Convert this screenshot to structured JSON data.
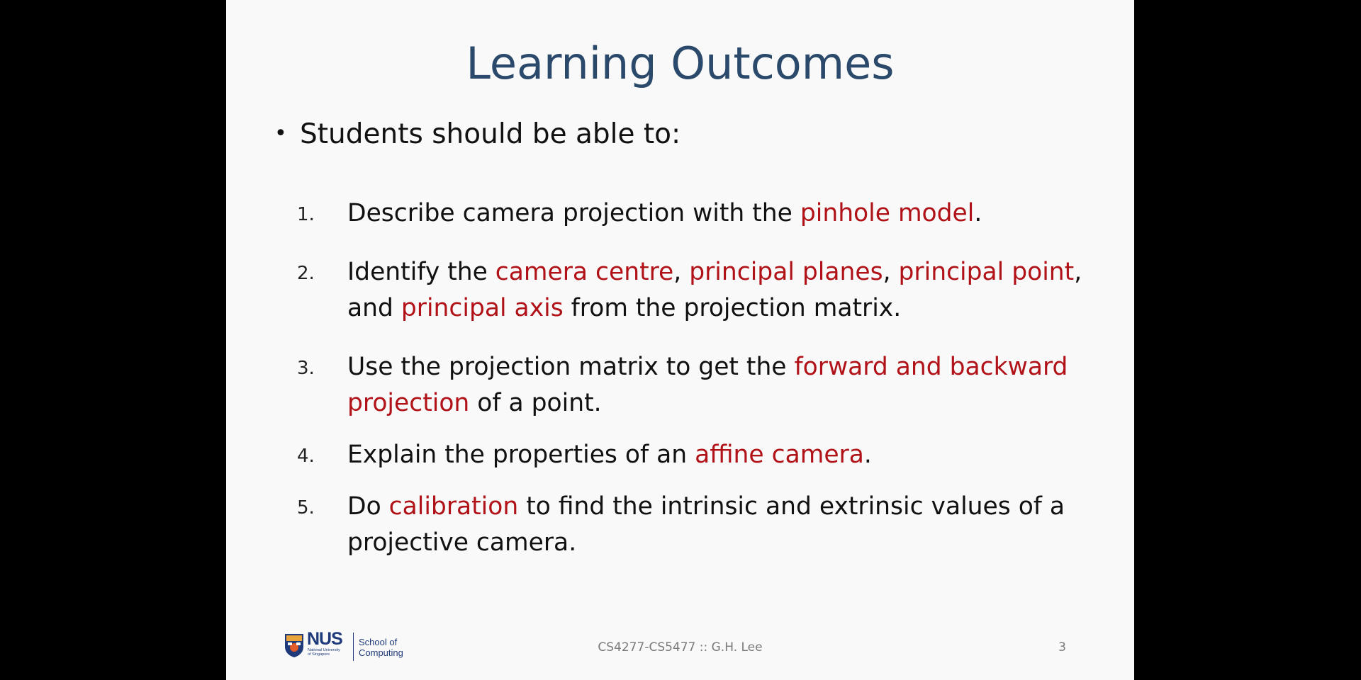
{
  "slide": {
    "title": "Learning Outcomes",
    "lead": "Students should be able to:",
    "bullet": "•",
    "items": [
      {
        "number": "1.",
        "segments": [
          {
            "text": "Describe camera projection with the ",
            "hl": false
          },
          {
            "text": "pinhole model",
            "hl": true
          },
          {
            "text": ".",
            "hl": false
          }
        ]
      },
      {
        "number": "2.",
        "segments": [
          {
            "text": "Identify the ",
            "hl": false
          },
          {
            "text": "camera centre",
            "hl": true
          },
          {
            "text": ", ",
            "hl": false
          },
          {
            "text": "principal planes",
            "hl": true
          },
          {
            "text": ", ",
            "hl": false
          },
          {
            "text": "principal point",
            "hl": true
          },
          {
            "text": ", and ",
            "hl": false
          },
          {
            "text": "principal axis",
            "hl": true
          },
          {
            "text": " from the projection matrix.",
            "hl": false
          }
        ]
      },
      {
        "number": "3.",
        "segments": [
          {
            "text": "Use the projection matrix to get the ",
            "hl": false
          },
          {
            "text": "forward and backward projection",
            "hl": true
          },
          {
            "text": " of a point.",
            "hl": false
          }
        ]
      },
      {
        "number": "4.",
        "segments": [
          {
            "text": "Explain the properties of an ",
            "hl": false
          },
          {
            "text": "affine camera",
            "hl": true
          },
          {
            "text": ".",
            "hl": false
          }
        ]
      },
      {
        "number": "5.",
        "segments": [
          {
            "text": "Do ",
            "hl": false
          },
          {
            "text": "calibration",
            "hl": true
          },
          {
            "text": " to find the intrinsic and extrinsic values of a projective camera.",
            "hl": false
          }
        ]
      }
    ],
    "footer": {
      "logo_wordmark": "NUS",
      "logo_subtitle": "National University of Singapore",
      "logo_school_line1": "School of",
      "logo_school_line2": "Computing",
      "course": "CS4277-CS5477 :: G.H. Lee",
      "page_number": "3"
    }
  },
  "colors": {
    "title": "#2b4a6b",
    "highlight": "#b01218",
    "text": "#111111",
    "footer_text": "#7a7a7a",
    "slide_background": "#f9f9f9",
    "letterbox": "#000000"
  }
}
